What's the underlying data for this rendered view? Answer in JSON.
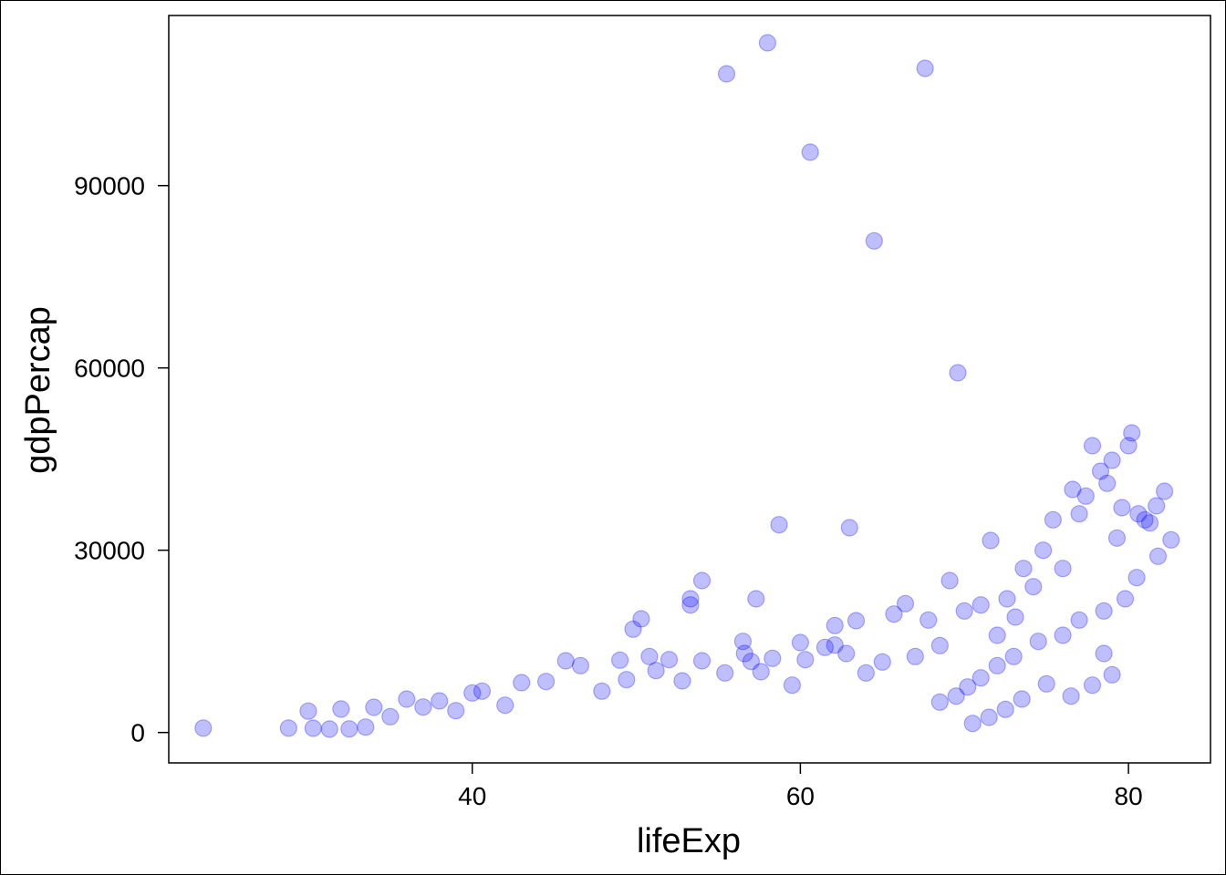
{
  "chart_data": {
    "type": "scatter",
    "xlabel": "lifeExp",
    "ylabel": "gdpPercap",
    "xlim": [
      21.5,
      85
    ],
    "ylim": [
      -5000,
      118000
    ],
    "xticks": [
      40,
      60,
      80
    ],
    "yticks": [
      0,
      30000,
      60000,
      90000
    ],
    "xtick_labels": [
      "40",
      "60",
      "80"
    ],
    "ytick_labels": [
      "0",
      "30000",
      "60000",
      "90000"
    ],
    "grid": false,
    "marker_color": "#0000ff",
    "marker_alpha": 0.25,
    "series": [
      {
        "points": [
          [
            23.6,
            737
          ],
          [
            28.8,
            731
          ],
          [
            30.0,
            3520
          ],
          [
            30.3,
            700
          ],
          [
            31.3,
            560
          ],
          [
            32.0,
            3870
          ],
          [
            32.5,
            600
          ],
          [
            33.5,
            900
          ],
          [
            34.0,
            4150
          ],
          [
            35.0,
            2600
          ],
          [
            36.0,
            5500
          ],
          [
            37.0,
            4200
          ],
          [
            38.0,
            5200
          ],
          [
            39.0,
            3600
          ],
          [
            40.0,
            6500
          ],
          [
            40.6,
            6800
          ],
          [
            42.0,
            4500
          ],
          [
            43.0,
            8200
          ],
          [
            44.5,
            8400
          ],
          [
            45.7,
            11800
          ],
          [
            46.6,
            11000
          ],
          [
            47.9,
            6800
          ],
          [
            49.0,
            11900
          ],
          [
            49.4,
            8700
          ],
          [
            49.8,
            17000
          ],
          [
            50.3,
            18700
          ],
          [
            50.8,
            12500
          ],
          [
            51.2,
            10200
          ],
          [
            52.0,
            12000
          ],
          [
            52.8,
            8500
          ],
          [
            53.3,
            22000
          ],
          [
            53.3,
            21000
          ],
          [
            54.0,
            25000
          ],
          [
            54.0,
            11800
          ],
          [
            55.4,
            9800
          ],
          [
            55.5,
            108400
          ],
          [
            56.5,
            15000
          ],
          [
            56.6,
            13000
          ],
          [
            57.0,
            11700
          ],
          [
            57.3,
            22000
          ],
          [
            57.6,
            10000
          ],
          [
            58.0,
            113500
          ],
          [
            58.3,
            12200
          ],
          [
            58.7,
            34200
          ],
          [
            59.5,
            7800
          ],
          [
            60.0,
            14800
          ],
          [
            60.3,
            12000
          ],
          [
            60.6,
            95500
          ],
          [
            61.5,
            14000
          ],
          [
            62.1,
            14400
          ],
          [
            62.1,
            17600
          ],
          [
            62.8,
            13000
          ],
          [
            63.0,
            33700
          ],
          [
            63.4,
            18400
          ],
          [
            64.0,
            9800
          ],
          [
            64.5,
            80900
          ],
          [
            65.0,
            11600
          ],
          [
            65.7,
            19500
          ],
          [
            66.4,
            21200
          ],
          [
            67.0,
            12500
          ],
          [
            67.6,
            109300
          ],
          [
            67.8,
            18500
          ],
          [
            68.5,
            14300
          ],
          [
            69.1,
            25000
          ],
          [
            69.6,
            59200
          ],
          [
            70.0,
            20000
          ],
          [
            71.0,
            21000
          ],
          [
            71.6,
            31600
          ],
          [
            72.0,
            16000
          ],
          [
            72.6,
            22000
          ],
          [
            73.1,
            19000
          ],
          [
            73.6,
            27000
          ],
          [
            74.2,
            24000
          ],
          [
            74.8,
            30000
          ],
          [
            75.4,
            35000
          ],
          [
            76.0,
            27000
          ],
          [
            76.6,
            40000
          ],
          [
            77.0,
            36000
          ],
          [
            77.4,
            38900
          ],
          [
            77.8,
            47200
          ],
          [
            78.3,
            43000
          ],
          [
            78.7,
            41000
          ],
          [
            79.0,
            44800
          ],
          [
            79.3,
            32000
          ],
          [
            79.6,
            37000
          ],
          [
            80.0,
            47200
          ],
          [
            80.2,
            49300
          ],
          [
            80.6,
            36000
          ],
          [
            81.0,
            35000
          ],
          [
            81.3,
            34500
          ],
          [
            81.7,
            37300
          ],
          [
            81.8,
            29000
          ],
          [
            82.2,
            39700
          ],
          [
            82.6,
            31700
          ],
          [
            80.5,
            25500
          ],
          [
            79.8,
            22000
          ],
          [
            78.5,
            20000
          ],
          [
            77.0,
            18500
          ],
          [
            76.0,
            16000
          ],
          [
            74.5,
            15000
          ],
          [
            73.0,
            12500
          ],
          [
            72.0,
            11000
          ],
          [
            71.0,
            9000
          ],
          [
            70.2,
            7500
          ],
          [
            69.5,
            6000
          ],
          [
            68.5,
            5000
          ],
          [
            75.0,
            8000
          ],
          [
            76.5,
            6000
          ],
          [
            77.8,
            7800
          ],
          [
            78.5,
            13000
          ],
          [
            79.0,
            9500
          ],
          [
            73.5,
            5500
          ],
          [
            72.5,
            3800
          ],
          [
            71.5,
            2500
          ],
          [
            70.5,
            1500
          ]
        ]
      }
    ]
  }
}
